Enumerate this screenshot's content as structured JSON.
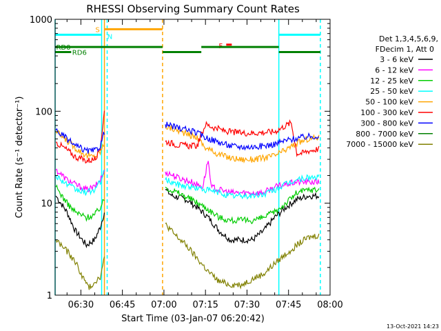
{
  "chart_data": {
    "type": "line",
    "title": "RHESSI Observing Summary Count Rates",
    "xlabel": "Start Time (03-Jan-07 06:20:42)",
    "ylabel": "Count Rate (s⁻¹ detector⁻¹)",
    "y_scale": "log",
    "ylim": [
      1,
      1000
    ],
    "y_ticks": [
      1,
      10,
      100,
      1000
    ],
    "y_tick_labels": [
      "1",
      "10",
      "100",
      "1000"
    ],
    "xlim_minutes": [
      20.7,
      120
    ],
    "x_ticks_minutes": [
      30,
      45,
      60,
      75,
      90,
      105,
      120
    ],
    "x_tick_labels": [
      "06:30",
      "06:45",
      "07:00",
      "07:15",
      "07:30",
      "07:45",
      "08:00"
    ],
    "legend_header": [
      "Det 1,3,4,5,6,9,",
      "FDecim 1, Att 0"
    ],
    "legend_position": "right",
    "series": [
      {
        "name": "3 - 6 keV",
        "color": "#000000",
        "points": [
          [
            21,
            12
          ],
          [
            25,
            8
          ],
          [
            28,
            5
          ],
          [
            32,
            3.5
          ],
          [
            35,
            4
          ],
          [
            37,
            5.5
          ],
          [
            38.5,
            8
          ],
          [
            58.5,
            null
          ],
          [
            60.5,
            14
          ],
          [
            63,
            12
          ],
          [
            68,
            11
          ],
          [
            72,
            9
          ],
          [
            76,
            7
          ],
          [
            80,
            5
          ],
          [
            84,
            4
          ],
          [
            88,
            4
          ],
          [
            92,
            4
          ],
          [
            96,
            5
          ],
          [
            100,
            7
          ],
          [
            104,
            9
          ],
          [
            108,
            11
          ],
          [
            112,
            12
          ],
          [
            116,
            12
          ]
        ]
      },
      {
        "name": "6 - 12 keV",
        "color": "#ff00ff",
        "points": [
          [
            21,
            23
          ],
          [
            25,
            18
          ],
          [
            28,
            16
          ],
          [
            32,
            14
          ],
          [
            35,
            15
          ],
          [
            37,
            18
          ],
          [
            38.5,
            22
          ],
          [
            58.5,
            null
          ],
          [
            60.5,
            22
          ],
          [
            65,
            19
          ],
          [
            70,
            17
          ],
          [
            74,
            15
          ],
          [
            76,
            30
          ],
          [
            77,
            15
          ],
          [
            80,
            14
          ],
          [
            84,
            13
          ],
          [
            88,
            13
          ],
          [
            92,
            13
          ],
          [
            96,
            13
          ],
          [
            100,
            15
          ],
          [
            104,
            16
          ],
          [
            108,
            17
          ],
          [
            112,
            17
          ],
          [
            116,
            17
          ]
        ]
      },
      {
        "name": "12 - 25 keV",
        "color": "#00cc00",
        "points": [
          [
            21,
            15
          ],
          [
            25,
            10
          ],
          [
            28,
            8
          ],
          [
            32,
            7
          ],
          [
            35,
            7.5
          ],
          [
            37,
            9
          ],
          [
            38.5,
            11
          ],
          [
            58.5,
            null
          ],
          [
            60.5,
            15
          ],
          [
            65,
            13
          ],
          [
            70,
            11
          ],
          [
            75,
            9
          ],
          [
            80,
            7
          ],
          [
            84,
            6.5
          ],
          [
            88,
            6.5
          ],
          [
            92,
            6.5
          ],
          [
            96,
            7
          ],
          [
            100,
            8
          ],
          [
            104,
            10
          ],
          [
            108,
            13
          ],
          [
            112,
            14
          ],
          [
            116,
            14
          ]
        ]
      },
      {
        "name": "25 - 50 keV",
        "color": "#00ffff",
        "points": [
          [
            21,
            20
          ],
          [
            25,
            16
          ],
          [
            28,
            14
          ],
          [
            32,
            13
          ],
          [
            35,
            14
          ],
          [
            37,
            17
          ],
          [
            38.5,
            22
          ],
          [
            58.5,
            null
          ],
          [
            60.5,
            18
          ],
          [
            65,
            16
          ],
          [
            70,
            15
          ],
          [
            75,
            14
          ],
          [
            80,
            13
          ],
          [
            84,
            12
          ],
          [
            88,
            12
          ],
          [
            92,
            12
          ],
          [
            96,
            12.5
          ],
          [
            100,
            14
          ],
          [
            104,
            16
          ],
          [
            108,
            18
          ],
          [
            112,
            19
          ],
          [
            116,
            19
          ]
        ]
      },
      {
        "name": "50 - 100 keV",
        "color": "#ffa500",
        "points": [
          [
            21,
            60
          ],
          [
            25,
            48
          ],
          [
            28,
            40
          ],
          [
            32,
            33
          ],
          [
            35,
            32
          ],
          [
            37,
            36
          ],
          [
            38.5,
            45
          ],
          [
            58.5,
            null
          ],
          [
            60.5,
            68
          ],
          [
            65,
            62
          ],
          [
            69,
            55
          ],
          [
            72,
            52
          ],
          [
            75,
            40
          ],
          [
            80,
            34
          ],
          [
            84,
            31
          ],
          [
            88,
            30
          ],
          [
            92,
            30
          ],
          [
            96,
            31
          ],
          [
            100,
            33
          ],
          [
            104,
            38
          ],
          [
            108,
            45
          ],
          [
            112,
            50
          ],
          [
            116,
            52
          ]
        ]
      },
      {
        "name": "100 - 300 keV",
        "color": "#ff0000",
        "points": [
          [
            21,
            46
          ],
          [
            25,
            38
          ],
          [
            28,
            32
          ],
          [
            32,
            29
          ],
          [
            35,
            30
          ],
          [
            37,
            40
          ],
          [
            38.5,
            100
          ],
          [
            58.5,
            null
          ],
          [
            60.5,
            47
          ],
          [
            65,
            43
          ],
          [
            69,
            42
          ],
          [
            72,
            42
          ],
          [
            75,
            72
          ],
          [
            79,
            65
          ],
          [
            83,
            60
          ],
          [
            88,
            58
          ],
          [
            92,
            58
          ],
          [
            96,
            59
          ],
          [
            100,
            60
          ],
          [
            104,
            70
          ],
          [
            106,
            75
          ],
          [
            108,
            35
          ],
          [
            110,
            35
          ],
          [
            112,
            37
          ],
          [
            116,
            39
          ]
        ]
      },
      {
        "name": "300 - 800 keV",
        "color": "#0000ff",
        "points": [
          [
            21,
            62
          ],
          [
            25,
            50
          ],
          [
            28,
            42
          ],
          [
            32,
            37
          ],
          [
            35,
            37
          ],
          [
            37,
            42
          ],
          [
            38.5,
            60
          ],
          [
            58.5,
            null
          ],
          [
            60.5,
            72
          ],
          [
            65,
            66
          ],
          [
            69,
            62
          ],
          [
            72,
            58
          ],
          [
            75,
            52
          ],
          [
            80,
            46
          ],
          [
            84,
            42
          ],
          [
            88,
            41
          ],
          [
            92,
            41
          ],
          [
            96,
            42
          ],
          [
            100,
            44
          ],
          [
            104,
            48
          ],
          [
            108,
            51
          ],
          [
            112,
            53
          ],
          [
            116,
            54
          ]
        ]
      },
      {
        "name": "800 - 7000 keV",
        "color": "#008000",
        "points": []
      },
      {
        "name": "7000 - 15000 keV",
        "color": "#808000",
        "points": [
          [
            21,
            4
          ],
          [
            25,
            3
          ],
          [
            28,
            2.3
          ],
          [
            31,
            1.5
          ],
          [
            33,
            1.2
          ],
          [
            35,
            1.4
          ],
          [
            37,
            1.6
          ],
          [
            38.5,
            2.5
          ],
          [
            58.5,
            null
          ],
          [
            60.5,
            6
          ],
          [
            64,
            4.5
          ],
          [
            68,
            3.5
          ],
          [
            72,
            2.5
          ],
          [
            76,
            1.8
          ],
          [
            80,
            1.4
          ],
          [
            84,
            1.3
          ],
          [
            88,
            1.3
          ],
          [
            92,
            1.5
          ],
          [
            96,
            1.7
          ],
          [
            100,
            2.2
          ],
          [
            104,
            2.8
          ],
          [
            108,
            3.5
          ],
          [
            112,
            4.2
          ],
          [
            116,
            4.5
          ]
        ]
      }
    ],
    "state_bars": [
      {
        "label": "S",
        "color": "#ffa500",
        "y": 780,
        "x_start": 38.5,
        "x_end": 59.5
      },
      {
        "label": "N",
        "color": "#00ffff",
        "y": 680,
        "segments": [
          [
            20.7,
            37.5
          ],
          [
            101.5,
            116.5
          ]
        ]
      },
      {
        "label": "F",
        "color": "#ff0000",
        "y": 530,
        "segments": [
          [
            82.5,
            84.5
          ]
        ]
      },
      {
        "label": "RD0",
        "color": "#008000",
        "y": 500,
        "segments": [
          [
            20.7,
            59.5
          ],
          [
            73.5,
            101.5
          ]
        ]
      },
      {
        "label": "RD6",
        "color": "#008000",
        "y": 440,
        "segments": [
          [
            20.7,
            26.5
          ],
          [
            59.5,
            73.5
          ],
          [
            101.5,
            116.5
          ]
        ]
      }
    ],
    "vertical_markers": [
      {
        "x": 20.7,
        "color": "#00ffff",
        "style": "solid"
      },
      {
        "x": 37.5,
        "color": "#00ffff",
        "style": "solid"
      },
      {
        "x": 38.5,
        "color": "#ffa500",
        "style": "solid"
      },
      {
        "x": 39.5,
        "color": "#00ffff",
        "style": "dashed"
      },
      {
        "x": 59.5,
        "color": "#ffa500",
        "style": "dashed"
      },
      {
        "x": 101.5,
        "color": "#00ffff",
        "style": "solid"
      },
      {
        "x": 116.5,
        "color": "#00ffff",
        "style": "dashed"
      }
    ],
    "footer_date": "13-Oct-2021 14:23"
  }
}
